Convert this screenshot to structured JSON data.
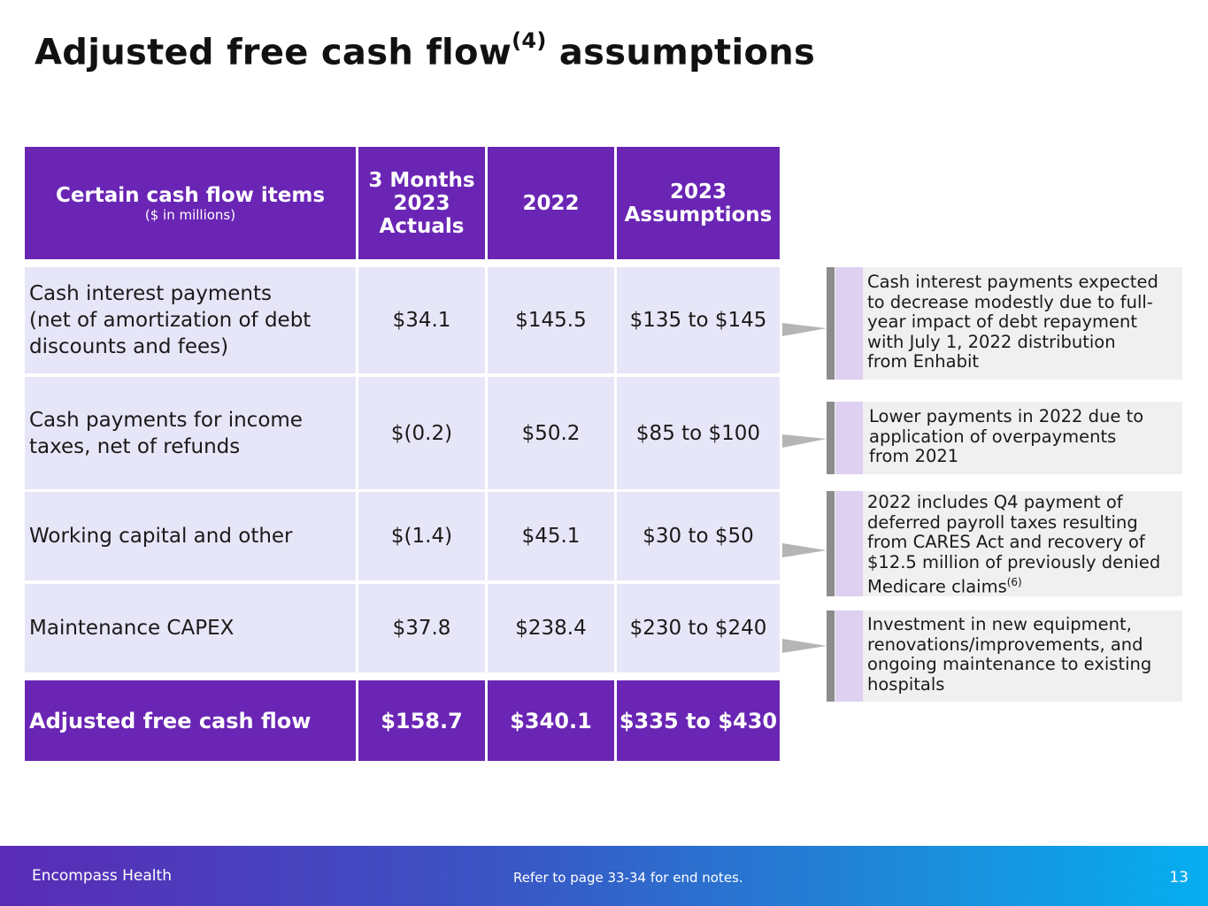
{
  "title": {
    "text": "Adjusted free cash flow",
    "superscript": "(4)",
    "suffix": "assumptions"
  },
  "table": {
    "header": {
      "col1_main": "Certain cash flow items",
      "col1_sub": "($ in millions)",
      "col2_l1": "3 Months",
      "col2_l2": "2023",
      "col2_l3": "Actuals",
      "col3": "2022",
      "col4_l1": "2023",
      "col4_l2": "Assumptions"
    },
    "rows": [
      {
        "label_l1": "Cash interest payments",
        "label_l2": "(net of amortization of debt",
        "label_l3": "discounts and fees)",
        "q1_2023": "$34.1",
        "y2022": "$145.5",
        "y2023": "$135 to $145"
      },
      {
        "label_l1": "Cash payments for income",
        "label_l2": "taxes, net of refunds",
        "q1_2023": "$(0.2)",
        "y2022": "$50.2",
        "y2023": "$85 to $100"
      },
      {
        "label_l1": "Working capital and other",
        "q1_2023": "$(1.4)",
        "y2022": "$45.1",
        "y2023": "$30 to $50"
      },
      {
        "label_l1": "Maintenance CAPEX",
        "q1_2023": "$37.8",
        "y2022": "$238.4",
        "y2023": "$230 to $240"
      }
    ],
    "total": {
      "label": "Adjusted free cash flow",
      "q1_2023": "$158.7",
      "y2022": "$340.1",
      "y2023": "$335 to $430"
    }
  },
  "notes": [
    {
      "lines": [
        "Cash interest payments expected",
        "to decrease modestly due to full-",
        "year impact of debt repayment",
        "with July 1, 2022 distribution",
        "from Enhabit"
      ]
    },
    {
      "lines": [
        "Lower payments in 2022 due to",
        "application of overpayments",
        "from 2021"
      ]
    },
    {
      "lines": [
        "2022 includes Q4 payment of",
        "deferred payroll taxes resulting",
        "from CARES Act and recovery of",
        "$12.5 million of previously denied",
        "Medicare claims"
      ],
      "superscript": "(6)"
    },
    {
      "lines": [
        "Investment in new equipment,",
        "renovations/improvements, and",
        "ongoing maintenance to existing",
        "hospitals"
      ]
    }
  ],
  "footer": {
    "brand": "Encompass Health",
    "reference": "Refer to page 33-34 for end notes.",
    "page_number": "13"
  },
  "colors": {
    "header_purple": "#6a25b4",
    "row_lavender": "#e6e6f8",
    "note_gray": "#f0f0f0",
    "note_accent": "#ddd0f0"
  }
}
